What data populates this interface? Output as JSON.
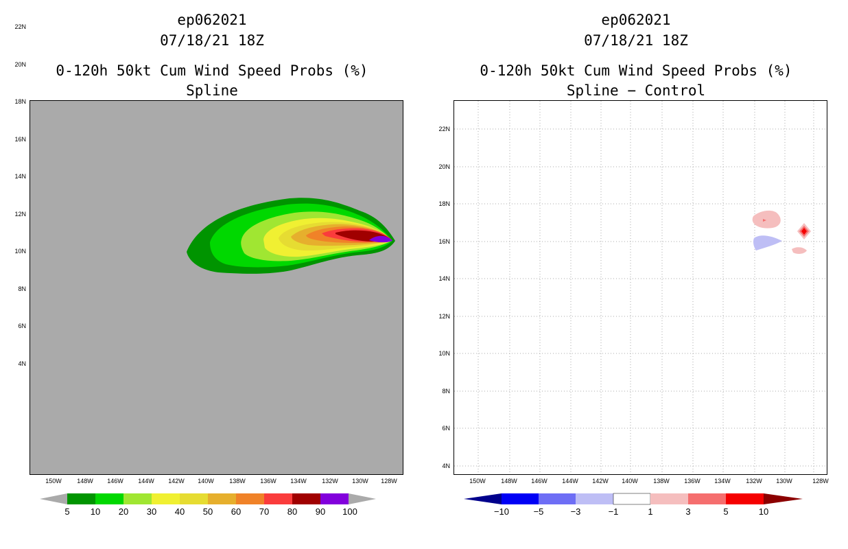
{
  "panels": [
    {
      "storm_id": "ep062021",
      "datetime": "07/18/21 18Z",
      "product": "0-120h 50kt Cum Wind Speed Probs (%)",
      "subtitle": "Spline"
    },
    {
      "storm_id": "ep062021",
      "datetime": "07/18/21 18Z",
      "product": "0-120h 50kt Cum Wind Speed Probs (%)",
      "subtitle": "Spline − Control"
    }
  ],
  "axes": {
    "lat_labels": [
      "22N",
      "20N",
      "18N",
      "16N",
      "14N",
      "12N",
      "10N",
      "8N",
      "6N",
      "4N"
    ],
    "lon_labels": [
      "150W",
      "148W",
      "146W",
      "144W",
      "142W",
      "140W",
      "138W",
      "136W",
      "134W",
      "132W",
      "130W",
      "128W"
    ]
  },
  "colorbar_left": {
    "labels": [
      "5",
      "10",
      "20",
      "30",
      "40",
      "50",
      "60",
      "70",
      "80",
      "90",
      "100"
    ],
    "colors": [
      "#009400",
      "#00d800",
      "#a0e632",
      "#f0f032",
      "#e6dc32",
      "#e6af2d",
      "#f08228",
      "#fa3c3c",
      "#a00000",
      "#8200dc"
    ],
    "under_color": "#aaaaaa",
    "over_color": "#aaaaaa"
  },
  "colorbar_right": {
    "labels": [
      "−10",
      "−5",
      "−3",
      "−1",
      "1",
      "3",
      "5",
      "10"
    ],
    "colors": [
      "#0000f5",
      "#6e6ef5",
      "#bebef5",
      "#ffffff",
      "#f5bebe",
      "#f56e6e",
      "#f50000"
    ],
    "under_color": "#00008c",
    "over_color": "#8c0000"
  },
  "map_colors": {
    "background_left": "#aaaaaa",
    "background_right": "#ffffff",
    "grid": "#aaaaaa"
  }
}
